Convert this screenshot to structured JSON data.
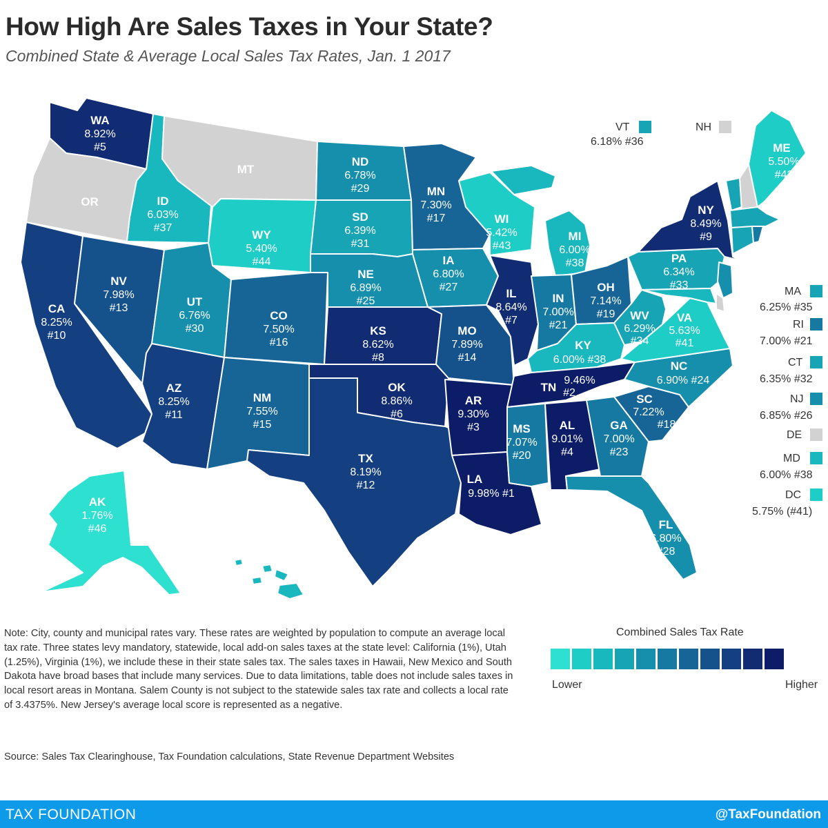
{
  "title": "How High Are Sales Taxes in Your State?",
  "subtitle": "Combined State & Average Local Sales Tax Rates, Jan. 1 2017",
  "colors": {
    "ramp": [
      "#2de0cf",
      "#1fcdc7",
      "#19b8be",
      "#17a5b5",
      "#168fac",
      "#1679a2",
      "#166596",
      "#15528b",
      "#143f80",
      "#122c73",
      "#0d1c66"
    ],
    "no_tax": "#d2d2d2",
    "footer": "#0d9ae8"
  },
  "states": [
    {
      "code": "WA",
      "value": "8.92%",
      "rank": "#5",
      "level": 9
    },
    {
      "code": "OR",
      "level": -1
    },
    {
      "code": "CA",
      "value": "8.25%",
      "rank": "#10",
      "level": 8
    },
    {
      "code": "ID",
      "value": "6.03%",
      "rank": "#37",
      "level": 2
    },
    {
      "code": "NV",
      "value": "7.98%",
      "rank": "#13",
      "level": 7
    },
    {
      "code": "MT",
      "level": -1
    },
    {
      "code": "WY",
      "value": "5.40%",
      "rank": "#44",
      "level": 1
    },
    {
      "code": "UT",
      "value": "6.76%",
      "rank": "#30",
      "level": 4
    },
    {
      "code": "AZ",
      "value": "8.25%",
      "rank": "#11",
      "level": 8
    },
    {
      "code": "CO",
      "value": "7.50%",
      "rank": "#16",
      "level": 6
    },
    {
      "code": "NM",
      "value": "7.55%",
      "rank": "#15",
      "level": 6
    },
    {
      "code": "ND",
      "value": "6.78%",
      "rank": "#29",
      "level": 4
    },
    {
      "code": "SD",
      "value": "6.39%",
      "rank": "#31",
      "level": 3
    },
    {
      "code": "NE",
      "value": "6.89%",
      "rank": "#25",
      "level": 4
    },
    {
      "code": "KS",
      "value": "8.62%",
      "rank": "#8",
      "level": 9
    },
    {
      "code": "OK",
      "value": "8.86%",
      "rank": "#6",
      "level": 9
    },
    {
      "code": "TX",
      "value": "8.19%",
      "rank": "#12",
      "level": 8
    },
    {
      "code": "MN",
      "value": "7.30%",
      "rank": "#17",
      "level": 6
    },
    {
      "code": "IA",
      "value": "6.80%",
      "rank": "#27",
      "level": 4
    },
    {
      "code": "MO",
      "value": "7.89%",
      "rank": "#14",
      "level": 7
    },
    {
      "code": "AR",
      "value": "9.30%",
      "rank": "#3",
      "level": 10
    },
    {
      "code": "LA",
      "value": "9.98% #1",
      "level": 10
    },
    {
      "code": "WI",
      "value": "5.42%",
      "rank": "#43",
      "level": 1
    },
    {
      "code": "IL",
      "value": "8.64%",
      "rank": "#7",
      "level": 9
    },
    {
      "code": "MI",
      "value": "6.00%",
      "rank": "#38",
      "level": 2
    },
    {
      "code": "IN",
      "value": "7.00%",
      "rank": "#21",
      "level": 5
    },
    {
      "code": "OH",
      "value": "7.14%",
      "rank": "#19",
      "level": 6
    },
    {
      "code": "KY",
      "value": "6.00% #38",
      "level": 2
    },
    {
      "code": "TN",
      "value": "9.46%",
      "rank": "#2",
      "level": 10
    },
    {
      "code": "MS",
      "value": "7.07%",
      "rank": "#20",
      "level": 5
    },
    {
      "code": "AL",
      "value": "9.01%",
      "rank": "#4",
      "level": 10
    },
    {
      "code": "GA",
      "value": "7.00%",
      "rank": "#23",
      "level": 5
    },
    {
      "code": "FL",
      "value": "6.80%",
      "rank": "#28",
      "level": 4
    },
    {
      "code": "SC",
      "value": "7.22%",
      "rank": "#18",
      "level": 6
    },
    {
      "code": "NC",
      "value": "6.90% #24",
      "level": 4
    },
    {
      "code": "VA",
      "value": "5.63%",
      "rank": "#41",
      "level": 1
    },
    {
      "code": "WV",
      "value": "6.29%",
      "rank": "#34",
      "level": 3
    },
    {
      "code": "PA",
      "value": "6.34%",
      "rank": "#33",
      "level": 3
    },
    {
      "code": "NY",
      "value": "8.49%",
      "rank": "#9",
      "level": 9
    },
    {
      "code": "ME",
      "value": "5.50%",
      "rank": "#42",
      "level": 1
    },
    {
      "code": "AK",
      "value": "1.76%",
      "rank": "#46",
      "level": 0
    },
    {
      "code": "HI",
      "level": 2
    }
  ],
  "small_states": [
    {
      "code": "VT",
      "value": "6.18% #36",
      "level": 3
    },
    {
      "code": "NH",
      "value": "",
      "level": -1
    },
    {
      "code": "MA",
      "value": "6.25% #35",
      "level": 3
    },
    {
      "code": "RI",
      "value": "7.00% #21",
      "level": 5
    },
    {
      "code": "CT",
      "value": "6.35% #32",
      "level": 3
    },
    {
      "code": "NJ",
      "value": "6.85% #26",
      "level": 4
    },
    {
      "code": "DE",
      "value": "",
      "level": -1
    },
    {
      "code": "MD",
      "value": "6.00% #38",
      "level": 2
    },
    {
      "code": "DC",
      "value": "5.75% (#41)",
      "level": 1
    }
  ],
  "note": "Note: City, county and municipal rates vary. These rates are weighted by population to compute an average local tax rate. Three states levy mandatory, statewide, local add-on sales taxes at the state level: California (1%), Utah (1.25%), Virginia (1%), we include these in their state sales tax. The sales taxes in Hawaii, New Mexico and South Dakota have broad bases that include many services. Due to data limitations, table does not include sales taxes in local resort areas in Montana. Salem County is not subject to the statewide sales tax rate and collects a local rate of 3.4375%. New Jersey's average local score is represented as a negative.",
  "source": "Source: Sales Tax Clearinghouse, Tax Foundation calculations, State Revenue Department Websites",
  "legend": {
    "title": "Combined Sales Tax Rate",
    "low": "Lower",
    "high": "Higher"
  },
  "footer": {
    "left": "TAX FOUNDATION",
    "right": "@TaxFoundation"
  }
}
